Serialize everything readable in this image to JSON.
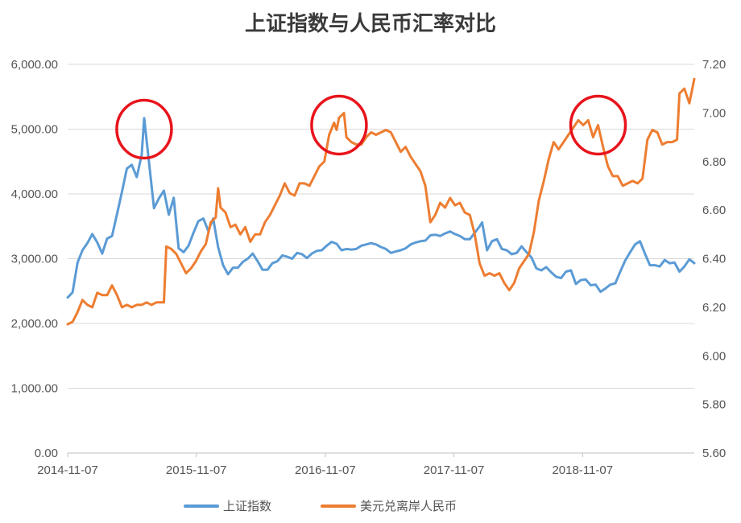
{
  "chart_data": {
    "type": "line",
    "title": "上证指数与人民币汇率对比",
    "x_ticks": [
      "2014-11-07",
      "2015-11-07",
      "2016-11-07",
      "2017-11-07",
      "2018-11-07"
    ],
    "x_range": [
      "2014-11-07",
      "2019-09-20"
    ],
    "y_left_ticks": [
      "0.00",
      "1,000.00",
      "2,000.00",
      "3,000.00",
      "4,000.00",
      "5,000.00",
      "6,000.00"
    ],
    "y_left_range": [
      0,
      6000
    ],
    "y_right_ticks": [
      "5.60",
      "5.80",
      "6.00",
      "6.20",
      "6.40",
      "6.60",
      "6.80",
      "7.00",
      "7.20"
    ],
    "y_right_range": [
      5.6,
      7.2
    ],
    "grid": true,
    "legend_position": "bottom",
    "annotations": [
      {
        "shape": "circle",
        "date": "2015-06-12",
        "value_left": 5000
      },
      {
        "shape": "circle",
        "date": "2016-12-16",
        "value_right": 6.95
      },
      {
        "shape": "circle",
        "date": "2018-12-21",
        "value_right": 6.95
      }
    ],
    "series": [
      {
        "name": "上证指数",
        "axis": "left",
        "color": "#5b9bd5",
        "points": [
          [
            "2014-11-07",
            2400
          ],
          [
            "2014-11-21",
            2480
          ],
          [
            "2014-12-05",
            2940
          ],
          [
            "2014-12-19",
            3130
          ],
          [
            "2015-01-02",
            3240
          ],
          [
            "2015-01-16",
            3380
          ],
          [
            "2015-01-30",
            3250
          ],
          [
            "2015-02-13",
            3080
          ],
          [
            "2015-02-27",
            3310
          ],
          [
            "2015-03-13",
            3350
          ],
          [
            "2015-03-27",
            3690
          ],
          [
            "2015-04-10",
            4030
          ],
          [
            "2015-04-24",
            4390
          ],
          [
            "2015-05-08",
            4450
          ],
          [
            "2015-05-22",
            4260
          ],
          [
            "2015-06-05",
            4600
          ],
          [
            "2015-06-12",
            5170
          ],
          [
            "2015-06-26",
            4480
          ],
          [
            "2015-07-10",
            3780
          ],
          [
            "2015-07-24",
            3930
          ],
          [
            "2015-08-07",
            4050
          ],
          [
            "2015-08-21",
            3680
          ],
          [
            "2015-09-04",
            3940
          ],
          [
            "2015-09-18",
            3160
          ],
          [
            "2015-10-02",
            3100
          ],
          [
            "2015-10-16",
            3200
          ],
          [
            "2015-10-30",
            3400
          ],
          [
            "2015-11-13",
            3580
          ],
          [
            "2015-11-27",
            3620
          ],
          [
            "2015-12-11",
            3430
          ],
          [
            "2015-12-25",
            3620
          ],
          [
            "2016-01-08",
            3180
          ],
          [
            "2016-01-22",
            2900
          ],
          [
            "2016-02-05",
            2760
          ],
          [
            "2016-02-19",
            2860
          ],
          [
            "2016-03-04",
            2860
          ],
          [
            "2016-03-18",
            2950
          ],
          [
            "2016-04-01",
            3000
          ],
          [
            "2016-04-15",
            3080
          ],
          [
            "2016-04-29",
            2960
          ],
          [
            "2016-05-13",
            2830
          ],
          [
            "2016-05-27",
            2830
          ],
          [
            "2016-06-10",
            2930
          ],
          [
            "2016-06-24",
            2960
          ],
          [
            "2016-07-08",
            3050
          ],
          [
            "2016-07-22",
            3030
          ],
          [
            "2016-08-05",
            3000
          ],
          [
            "2016-08-19",
            3090
          ],
          [
            "2016-09-02",
            3070
          ],
          [
            "2016-09-16",
            3010
          ],
          [
            "2016-09-30",
            3080
          ],
          [
            "2016-10-14",
            3120
          ],
          [
            "2016-10-28",
            3130
          ],
          [
            "2016-11-11",
            3200
          ],
          [
            "2016-11-25",
            3260
          ],
          [
            "2016-12-09",
            3230
          ],
          [
            "2016-12-23",
            3130
          ],
          [
            "2017-01-06",
            3150
          ],
          [
            "2017-01-20",
            3140
          ],
          [
            "2017-02-03",
            3150
          ],
          [
            "2017-02-17",
            3200
          ],
          [
            "2017-03-03",
            3220
          ],
          [
            "2017-03-17",
            3240
          ],
          [
            "2017-03-31",
            3220
          ],
          [
            "2017-04-14",
            3180
          ],
          [
            "2017-04-28",
            3150
          ],
          [
            "2017-05-12",
            3090
          ],
          [
            "2017-05-26",
            3110
          ],
          [
            "2017-06-09",
            3130
          ],
          [
            "2017-06-23",
            3160
          ],
          [
            "2017-07-07",
            3220
          ],
          [
            "2017-07-21",
            3250
          ],
          [
            "2017-08-04",
            3270
          ],
          [
            "2017-08-18",
            3280
          ],
          [
            "2017-09-01",
            3360
          ],
          [
            "2017-09-15",
            3370
          ],
          [
            "2017-09-29",
            3350
          ],
          [
            "2017-10-13",
            3390
          ],
          [
            "2017-10-27",
            3420
          ],
          [
            "2017-11-10",
            3380
          ],
          [
            "2017-11-24",
            3350
          ],
          [
            "2017-12-08",
            3300
          ],
          [
            "2017-12-22",
            3300
          ],
          [
            "2018-01-05",
            3400
          ],
          [
            "2018-01-19",
            3500
          ],
          [
            "2018-01-26",
            3560
          ],
          [
            "2018-02-09",
            3130
          ],
          [
            "2018-02-23",
            3270
          ],
          [
            "2018-03-09",
            3300
          ],
          [
            "2018-03-23",
            3150
          ],
          [
            "2018-04-06",
            3130
          ],
          [
            "2018-04-20",
            3070
          ],
          [
            "2018-05-04",
            3090
          ],
          [
            "2018-05-18",
            3190
          ],
          [
            "2018-06-01",
            3100
          ],
          [
            "2018-06-15",
            3020
          ],
          [
            "2018-06-29",
            2850
          ],
          [
            "2018-07-13",
            2820
          ],
          [
            "2018-07-27",
            2870
          ],
          [
            "2018-08-10",
            2790
          ],
          [
            "2018-08-24",
            2720
          ],
          [
            "2018-09-07",
            2700
          ],
          [
            "2018-09-21",
            2800
          ],
          [
            "2018-10-05",
            2820
          ],
          [
            "2018-10-19",
            2610
          ],
          [
            "2018-11-02",
            2670
          ],
          [
            "2018-11-16",
            2680
          ],
          [
            "2018-11-30",
            2590
          ],
          [
            "2018-12-14",
            2600
          ],
          [
            "2018-12-28",
            2490
          ],
          [
            "2019-01-11",
            2540
          ],
          [
            "2019-01-25",
            2600
          ],
          [
            "2019-02-08",
            2620
          ],
          [
            "2019-02-22",
            2800
          ],
          [
            "2019-03-08",
            2970
          ],
          [
            "2019-03-22",
            3100
          ],
          [
            "2019-04-05",
            3220
          ],
          [
            "2019-04-19",
            3270
          ],
          [
            "2019-05-03",
            3080
          ],
          [
            "2019-05-17",
            2900
          ],
          [
            "2019-05-31",
            2900
          ],
          [
            "2019-06-14",
            2880
          ],
          [
            "2019-06-28",
            2980
          ],
          [
            "2019-07-12",
            2930
          ],
          [
            "2019-07-26",
            2940
          ],
          [
            "2019-08-09",
            2800
          ],
          [
            "2019-08-23",
            2880
          ],
          [
            "2019-09-06",
            2990
          ],
          [
            "2019-09-20",
            2930
          ]
        ]
      },
      {
        "name": "美元兑离岸人民币",
        "axis": "right",
        "color": "#ed7d31",
        "points": [
          [
            "2014-11-07",
            6.13
          ],
          [
            "2014-11-21",
            6.14
          ],
          [
            "2014-12-05",
            6.18
          ],
          [
            "2014-12-19",
            6.23
          ],
          [
            "2015-01-02",
            6.21
          ],
          [
            "2015-01-16",
            6.2
          ],
          [
            "2015-01-30",
            6.26
          ],
          [
            "2015-02-13",
            6.25
          ],
          [
            "2015-02-27",
            6.25
          ],
          [
            "2015-03-13",
            6.29
          ],
          [
            "2015-03-27",
            6.25
          ],
          [
            "2015-04-10",
            6.2
          ],
          [
            "2015-04-24",
            6.21
          ],
          [
            "2015-05-08",
            6.2
          ],
          [
            "2015-05-22",
            6.21
          ],
          [
            "2015-06-05",
            6.21
          ],
          [
            "2015-06-19",
            6.22
          ],
          [
            "2015-07-03",
            6.21
          ],
          [
            "2015-07-17",
            6.22
          ],
          [
            "2015-07-31",
            6.22
          ],
          [
            "2015-08-07",
            6.22
          ],
          [
            "2015-08-14",
            6.45
          ],
          [
            "2015-08-28",
            6.44
          ],
          [
            "2015-09-11",
            6.42
          ],
          [
            "2015-09-25",
            6.38
          ],
          [
            "2015-10-09",
            6.34
          ],
          [
            "2015-10-23",
            6.36
          ],
          [
            "2015-11-06",
            6.39
          ],
          [
            "2015-11-20",
            6.43
          ],
          [
            "2015-12-04",
            6.46
          ],
          [
            "2015-12-18",
            6.55
          ],
          [
            "2016-01-01",
            6.57
          ],
          [
            "2016-01-08",
            6.69
          ],
          [
            "2016-01-15",
            6.61
          ],
          [
            "2016-01-29",
            6.59
          ],
          [
            "2016-02-12",
            6.53
          ],
          [
            "2016-02-26",
            6.54
          ],
          [
            "2016-03-11",
            6.5
          ],
          [
            "2016-03-25",
            6.53
          ],
          [
            "2016-04-08",
            6.47
          ],
          [
            "2016-04-22",
            6.5
          ],
          [
            "2016-05-06",
            6.5
          ],
          [
            "2016-05-20",
            6.55
          ],
          [
            "2016-06-03",
            6.58
          ],
          [
            "2016-06-17",
            6.62
          ],
          [
            "2016-07-01",
            6.66
          ],
          [
            "2016-07-15",
            6.71
          ],
          [
            "2016-07-29",
            6.67
          ],
          [
            "2016-08-12",
            6.66
          ],
          [
            "2016-08-26",
            6.71
          ],
          [
            "2016-09-09",
            6.71
          ],
          [
            "2016-09-23",
            6.7
          ],
          [
            "2016-10-07",
            6.74
          ],
          [
            "2016-10-21",
            6.78
          ],
          [
            "2016-11-04",
            6.8
          ],
          [
            "2016-11-18",
            6.91
          ],
          [
            "2016-12-02",
            6.96
          ],
          [
            "2016-12-09",
            6.93
          ],
          [
            "2016-12-16",
            6.98
          ],
          [
            "2016-12-30",
            7.0
          ],
          [
            "2017-01-06",
            6.9
          ],
          [
            "2017-01-20",
            6.88
          ],
          [
            "2017-02-03",
            6.87
          ],
          [
            "2017-02-17",
            6.87
          ],
          [
            "2017-03-03",
            6.9
          ],
          [
            "2017-03-17",
            6.92
          ],
          [
            "2017-03-31",
            6.91
          ],
          [
            "2017-04-14",
            6.92
          ],
          [
            "2017-04-28",
            6.93
          ],
          [
            "2017-05-12",
            6.92
          ],
          [
            "2017-05-26",
            6.88
          ],
          [
            "2017-06-09",
            6.84
          ],
          [
            "2017-06-23",
            6.86
          ],
          [
            "2017-07-07",
            6.82
          ],
          [
            "2017-07-21",
            6.79
          ],
          [
            "2017-08-04",
            6.76
          ],
          [
            "2017-08-18",
            6.7
          ],
          [
            "2017-09-01",
            6.55
          ],
          [
            "2017-09-15",
            6.58
          ],
          [
            "2017-09-29",
            6.63
          ],
          [
            "2017-10-13",
            6.61
          ],
          [
            "2017-10-27",
            6.65
          ],
          [
            "2017-11-10",
            6.62
          ],
          [
            "2017-11-24",
            6.63
          ],
          [
            "2017-12-08",
            6.59
          ],
          [
            "2017-12-22",
            6.58
          ],
          [
            "2018-01-05",
            6.5
          ],
          [
            "2018-01-19",
            6.38
          ],
          [
            "2018-02-02",
            6.33
          ],
          [
            "2018-02-16",
            6.34
          ],
          [
            "2018-03-02",
            6.33
          ],
          [
            "2018-03-16",
            6.34
          ],
          [
            "2018-03-30",
            6.3
          ],
          [
            "2018-04-13",
            6.27
          ],
          [
            "2018-04-27",
            6.3
          ],
          [
            "2018-05-11",
            6.36
          ],
          [
            "2018-05-25",
            6.39
          ],
          [
            "2018-06-08",
            6.42
          ],
          [
            "2018-06-22",
            6.51
          ],
          [
            "2018-07-06",
            6.64
          ],
          [
            "2018-07-20",
            6.72
          ],
          [
            "2018-08-03",
            6.81
          ],
          [
            "2018-08-17",
            6.88
          ],
          [
            "2018-08-31",
            6.85
          ],
          [
            "2018-09-14",
            6.88
          ],
          [
            "2018-09-28",
            6.91
          ],
          [
            "2018-10-12",
            6.94
          ],
          [
            "2018-10-26",
            6.97
          ],
          [
            "2018-11-09",
            6.95
          ],
          [
            "2018-11-23",
            6.97
          ],
          [
            "2018-12-07",
            6.9
          ],
          [
            "2018-12-21",
            6.95
          ],
          [
            "2019-01-04",
            6.86
          ],
          [
            "2019-01-18",
            6.78
          ],
          [
            "2019-02-01",
            6.74
          ],
          [
            "2019-02-15",
            6.74
          ],
          [
            "2019-03-01",
            6.7
          ],
          [
            "2019-03-15",
            6.71
          ],
          [
            "2019-03-29",
            6.72
          ],
          [
            "2019-04-12",
            6.71
          ],
          [
            "2019-04-26",
            6.73
          ],
          [
            "2019-05-10",
            6.89
          ],
          [
            "2019-05-24",
            6.93
          ],
          [
            "2019-06-07",
            6.92
          ],
          [
            "2019-06-21",
            6.87
          ],
          [
            "2019-07-05",
            6.88
          ],
          [
            "2019-07-19",
            6.88
          ],
          [
            "2019-08-02",
            6.89
          ],
          [
            "2019-08-09",
            7.08
          ],
          [
            "2019-08-23",
            7.1
          ],
          [
            "2019-09-06",
            7.04
          ],
          [
            "2019-09-20",
            7.14
          ]
        ]
      }
    ]
  }
}
